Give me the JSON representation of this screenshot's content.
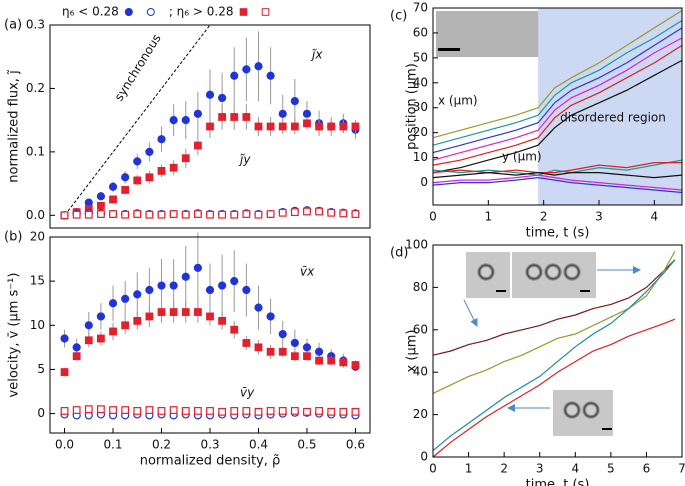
{
  "chart_data": [
    {
      "type": "scatter",
      "panel": "(a)",
      "ylabel": "normalized flux, j̃",
      "x": [
        0,
        0.025,
        0.05,
        0.075,
        0.1,
        0.125,
        0.15,
        0.175,
        0.2,
        0.225,
        0.25,
        0.275,
        0.3,
        0.325,
        0.35,
        0.375,
        0.4,
        0.425,
        0.45,
        0.475,
        0.5,
        0.525,
        0.55,
        0.575,
        0.6
      ],
      "xlim": [
        -0.03,
        0.63
      ],
      "ylim": [
        -0.02,
        0.3
      ],
      "yticks": [
        {
          "value": 0,
          "label": "0.0"
        },
        0.1,
        0.2,
        0.3
      ],
      "annotations": [
        "synchronous",
        "j̃x",
        "j̃y"
      ],
      "series": [
        {
          "name": "η₆ < 0.28",
          "color": "#1f35d8",
          "marker": "circle",
          "filled": true,
          "values": [
            0,
            0.005,
            0.02,
            0.03,
            0.045,
            0.06,
            0.085,
            0.1,
            0.12,
            0.15,
            0.15,
            0.16,
            0.19,
            0.185,
            0.22,
            0.23,
            0.235,
            0.22,
            0.16,
            0.18,
            0.16,
            0.145,
            0.14,
            0.145,
            0.135
          ],
          "errors": [
            0,
            0.003,
            0.005,
            0.006,
            0.008,
            0.01,
            0.012,
            0.015,
            0.02,
            0.025,
            0.03,
            0.035,
            0.04,
            0.04,
            0.045,
            0.05,
            0.055,
            0.045,
            0.03,
            0.035,
            0.02,
            0.02,
            0.015,
            0.015,
            0.015
          ]
        },
        {
          "name": "; η₆ > 0.28",
          "color": "#e3202b",
          "marker": "square",
          "filled": true,
          "values": [
            0,
            0.005,
            0.01,
            0.015,
            0.025,
            0.04,
            0.055,
            0.06,
            0.07,
            0.075,
            0.09,
            0.11,
            0.14,
            0.155,
            0.155,
            0.155,
            0.14,
            0.14,
            0.14,
            0.14,
            0.145,
            0.14,
            0.14,
            0.14,
            0.14
          ],
          "errors": [
            0,
            0.002,
            0.003,
            0.004,
            0.005,
            0.006,
            0.008,
            0.01,
            0.01,
            0.012,
            0.015,
            0.015,
            0.018,
            0.02,
            0.02,
            0.02,
            0.015,
            0.015,
            0.012,
            0.012,
            0.01,
            0.01,
            0.01,
            0.01,
            0.01
          ]
        },
        {
          "color": "#1f35d8",
          "marker": "circle",
          "filled": false,
          "values": [
            0,
            0.002,
            0.003,
            0.003,
            0.002,
            0.002,
            0.003,
            0.002,
            0.002,
            0.002,
            0.002,
            0.003,
            0.002,
            0.002,
            0.002,
            0.003,
            0.002,
            0.002,
            0.005,
            0.007,
            0.008,
            0.007,
            0.005,
            0.004,
            0.003
          ]
        },
        {
          "color": "#e3202b",
          "marker": "square",
          "filled": false,
          "values": [
            0,
            0.001,
            0.001,
            0.002,
            0.002,
            0.001,
            0.002,
            0.001,
            0.001,
            0.002,
            0.001,
            0.002,
            0.001,
            0.001,
            0.001,
            0.002,
            0.001,
            0.002,
            0.004,
            0.005,
            0.006,
            0.006,
            0.004,
            0.003,
            0.002
          ]
        }
      ]
    },
    {
      "type": "scatter",
      "panel": "(b)",
      "ylabel": "velocity, v̄ (μm s⁻¹)",
      "xlabel": "normalized density, ρ̃",
      "x": [
        0,
        0.025,
        0.05,
        0.075,
        0.1,
        0.125,
        0.15,
        0.175,
        0.2,
        0.225,
        0.25,
        0.275,
        0.3,
        0.325,
        0.35,
        0.375,
        0.4,
        0.425,
        0.45,
        0.475,
        0.5,
        0.525,
        0.55,
        0.575,
        0.6
      ],
      "xlim": [
        -0.03,
        0.63
      ],
      "ylim": [
        -2.2,
        20
      ],
      "xticks": [
        {
          "value": 0,
          "label": "0.0"
        },
        0.1,
        0.2,
        0.3,
        0.4,
        0.5,
        0.6
      ],
      "yticks": [
        0,
        5,
        10,
        15,
        20
      ],
      "annotations": [
        "v̄x",
        "v̄y"
      ],
      "series": [
        {
          "color": "#1f35d8",
          "marker": "circle",
          "filled": true,
          "values": [
            8.5,
            7.5,
            10,
            11,
            12.5,
            13,
            13.5,
            14,
            14.5,
            14.5,
            15.5,
            16.5,
            14,
            14.5,
            15,
            14,
            12,
            11,
            9,
            8,
            7.5,
            7,
            6.5,
            6,
            5.3
          ],
          "errors": [
            1,
            1,
            1.5,
            1.5,
            2,
            2,
            2.5,
            2.5,
            3,
            3,
            3.5,
            4,
            3,
            3.5,
            3.5,
            3,
            2.5,
            2,
            1.5,
            1.5,
            1,
            1,
            0.8,
            0.8,
            0.5
          ]
        },
        {
          "color": "#e3202b",
          "marker": "square",
          "filled": true,
          "values": [
            4.7,
            6.5,
            8.3,
            8.5,
            9.3,
            10,
            10.5,
            11,
            11.5,
            11.5,
            11.5,
            11.5,
            11,
            10.5,
            9.5,
            8,
            7.5,
            7,
            7,
            6.5,
            6.5,
            6,
            6,
            5.8,
            5.5
          ],
          "errors": [
            0.5,
            0.5,
            0.8,
            0.8,
            1,
            1,
            1,
            1.2,
            1.2,
            1.2,
            1.2,
            1.2,
            1,
            1,
            1,
            0.8,
            0.8,
            0.8,
            0.6,
            0.6,
            0.5,
            0.5,
            0.5,
            0.5,
            0.5
          ]
        },
        {
          "color": "#1f35d8",
          "marker": "circle",
          "filled": false,
          "values": [
            -0.1,
            -0.2,
            -0.2,
            -0.1,
            -0.2,
            -0.2,
            -0.1,
            -0.2,
            -0.1,
            -0.2,
            -0.1,
            -0.2,
            -0.2,
            -0.1,
            -0.2,
            -0.1,
            -0.2,
            -0.1,
            0,
            0.1,
            0.1,
            0,
            -0.1,
            -0.1,
            -0.2
          ]
        },
        {
          "color": "#e3202b",
          "marker": "square",
          "filled": false,
          "values": [
            0.3,
            0.4,
            0.5,
            0.5,
            0.4,
            0.4,
            0.3,
            0.4,
            0.3,
            0.4,
            0.3,
            0.3,
            0.3,
            0.2,
            0.3,
            0.3,
            0.2,
            0.3,
            0.3,
            0.3,
            0.2,
            0.3,
            0.2,
            0.2,
            0.2
          ]
        }
      ]
    },
    {
      "type": "line",
      "panel": "(c)",
      "ylabel": "position (μm)",
      "xlabel": "time, t (s)",
      "x": [
        0,
        0.5,
        1,
        1.5,
        1.9,
        2.2,
        2.5,
        3,
        3.5,
        4,
        4.5
      ],
      "xlim": [
        0,
        4.5
      ],
      "ylim": [
        -9,
        70
      ],
      "xticks": [
        0,
        1,
        2,
        3,
        4
      ],
      "yticks": [
        0,
        10,
        20,
        30,
        40,
        50,
        60,
        70
      ],
      "shaded_xlim": [
        1.9,
        4.5
      ],
      "annotations": [
        "x (μm)",
        "y (μm)",
        "disordered region"
      ],
      "series": [
        {
          "color": "#9a9a2a",
          "values": [
            18,
            21,
            24,
            27,
            30,
            38,
            42,
            48,
            55,
            62,
            69
          ]
        },
        {
          "color": "#1a9a9a",
          "values": [
            15,
            18,
            21,
            24,
            27,
            35,
            40,
            45,
            52,
            58,
            65
          ]
        },
        {
          "color": "#2a3ad8",
          "values": [
            12,
            15,
            18,
            21,
            24,
            32,
            37,
            42,
            48,
            55,
            62
          ]
        },
        {
          "color": "#e020d0",
          "values": [
            9,
            12,
            15,
            18,
            21,
            29,
            34,
            39,
            45,
            52,
            58
          ]
        },
        {
          "color": "#e02020",
          "values": [
            7,
            9,
            12,
            15,
            18,
            26,
            31,
            36,
            42,
            48,
            55
          ]
        },
        {
          "color": "#111111",
          "values": [
            4,
            6,
            9,
            12,
            15,
            22,
            27,
            32,
            37,
            43,
            49
          ]
        },
        {
          "color": "#1a9a9a",
          "values": [
            5,
            4,
            5,
            4,
            3,
            5,
            4,
            6,
            5,
            7,
            9
          ]
        },
        {
          "color": "#e02020",
          "values": [
            4,
            5,
            4,
            5,
            4,
            4,
            5,
            7,
            6,
            8,
            8
          ]
        },
        {
          "color": "#111111",
          "values": [
            2,
            3,
            4,
            3,
            4,
            3,
            4,
            4,
            3,
            2,
            3
          ]
        },
        {
          "color": "#e020d0",
          "values": [
            0,
            1,
            1,
            2,
            3,
            2,
            1,
            0,
            -1,
            -2,
            -3
          ]
        },
        {
          "color": "#2a3ad8",
          "values": [
            -1,
            0,
            0,
            1,
            2,
            1,
            0,
            -1,
            -2,
            -3,
            -4
          ]
        }
      ]
    },
    {
      "type": "line",
      "panel": "(d)",
      "ylabel": "x (μm)",
      "xlabel": "time, t (s)",
      "x": [
        0,
        0.5,
        1,
        1.5,
        2,
        2.5,
        3,
        3.5,
        4,
        4.5,
        5,
        5.5,
        6,
        6.5,
        6.8
      ],
      "xlim": [
        0,
        7
      ],
      "ylim": [
        0,
        100
      ],
      "xticks": [
        0,
        1,
        2,
        3,
        4,
        5,
        6,
        7
      ],
      "yticks": [
        0,
        20,
        40,
        60,
        80,
        100
      ],
      "series": [
        {
          "color": "#7a1a1a",
          "values": [
            48,
            50,
            53,
            55,
            58,
            60,
            62,
            65,
            67,
            70,
            72,
            75,
            80,
            88,
            93
          ]
        },
        {
          "color": "#9a9a2a",
          "values": [
            30,
            34,
            38,
            41,
            45,
            48,
            52,
            56,
            58,
            62,
            66,
            70,
            76,
            88,
            97
          ]
        },
        {
          "color": "#1a8a9a",
          "values": [
            3,
            10,
            16,
            22,
            28,
            33,
            38,
            45,
            52,
            58,
            63,
            70,
            78,
            87,
            93
          ]
        },
        {
          "color": "#e02020",
          "values": [
            0,
            7,
            13,
            19,
            24,
            29,
            34,
            40,
            45,
            50,
            53,
            57,
            60,
            63,
            65
          ]
        }
      ]
    }
  ]
}
